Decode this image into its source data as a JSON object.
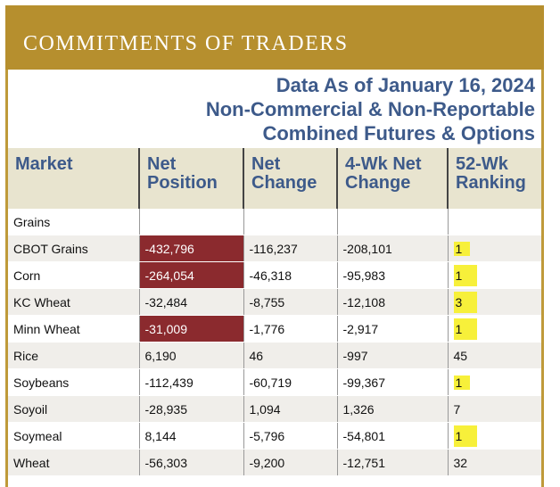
{
  "banner": {
    "title": "COMMITMENTS OF TRADERS"
  },
  "subtitle": {
    "line1": "Data As of January 16, 2024",
    "line2": "Non-Commercial & Non-Reportable",
    "line3": "Combined Futures & Options"
  },
  "colors": {
    "banner": "#b68f2e",
    "header_text": "#3d5a8a",
    "extreme_cell": "#8b2a2e",
    "highlight": "#f7f03a"
  },
  "table": {
    "headers": [
      {
        "line1": "Market",
        "line2": ""
      },
      {
        "line1": "Net",
        "line2": "Position"
      },
      {
        "line1": "Net",
        "line2": "Change"
      },
      {
        "line1": "4-Wk Net",
        "line2": "Change"
      },
      {
        "line1": "52-Wk",
        "line2": "Ranking"
      }
    ],
    "rows": [
      {
        "market": "Grains",
        "net_position": "",
        "net_change": "",
        "four_wk": "",
        "ranking": ""
      },
      {
        "market": "CBOT Grains",
        "net_position": "-432,796",
        "net_change": "-116,237",
        "four_wk": "-208,101",
        "ranking": "1"
      },
      {
        "market": "Corn",
        "net_position": "-264,054",
        "net_change": "-46,318",
        "four_wk": "-95,983",
        "ranking": "1"
      },
      {
        "market": "KC Wheat",
        "net_position": "-32,484",
        "net_change": "-8,755",
        "four_wk": "-12,108",
        "ranking": "3"
      },
      {
        "market": "Minn Wheat",
        "net_position": "-31,009",
        "net_change": "-1,776",
        "four_wk": "-2,917",
        "ranking": "1"
      },
      {
        "market": "Rice",
        "net_position": "6,190",
        "net_change": "46",
        "four_wk": "-997",
        "ranking": "45"
      },
      {
        "market": "Soybeans",
        "net_position": "-112,439",
        "net_change": "-60,719",
        "four_wk": "-99,367",
        "ranking": "1"
      },
      {
        "market": "Soyoil",
        "net_position": "-28,935",
        "net_change": "1,094",
        "four_wk": "1,326",
        "ranking": "7"
      },
      {
        "market": "Soymeal",
        "net_position": "8,144",
        "net_change": "-5,796",
        "four_wk": "-54,801",
        "ranking": "1"
      },
      {
        "market": "Wheat",
        "net_position": "-56,303",
        "net_change": "-9,200",
        "four_wk": "-12,751",
        "ranking": "32"
      }
    ]
  }
}
